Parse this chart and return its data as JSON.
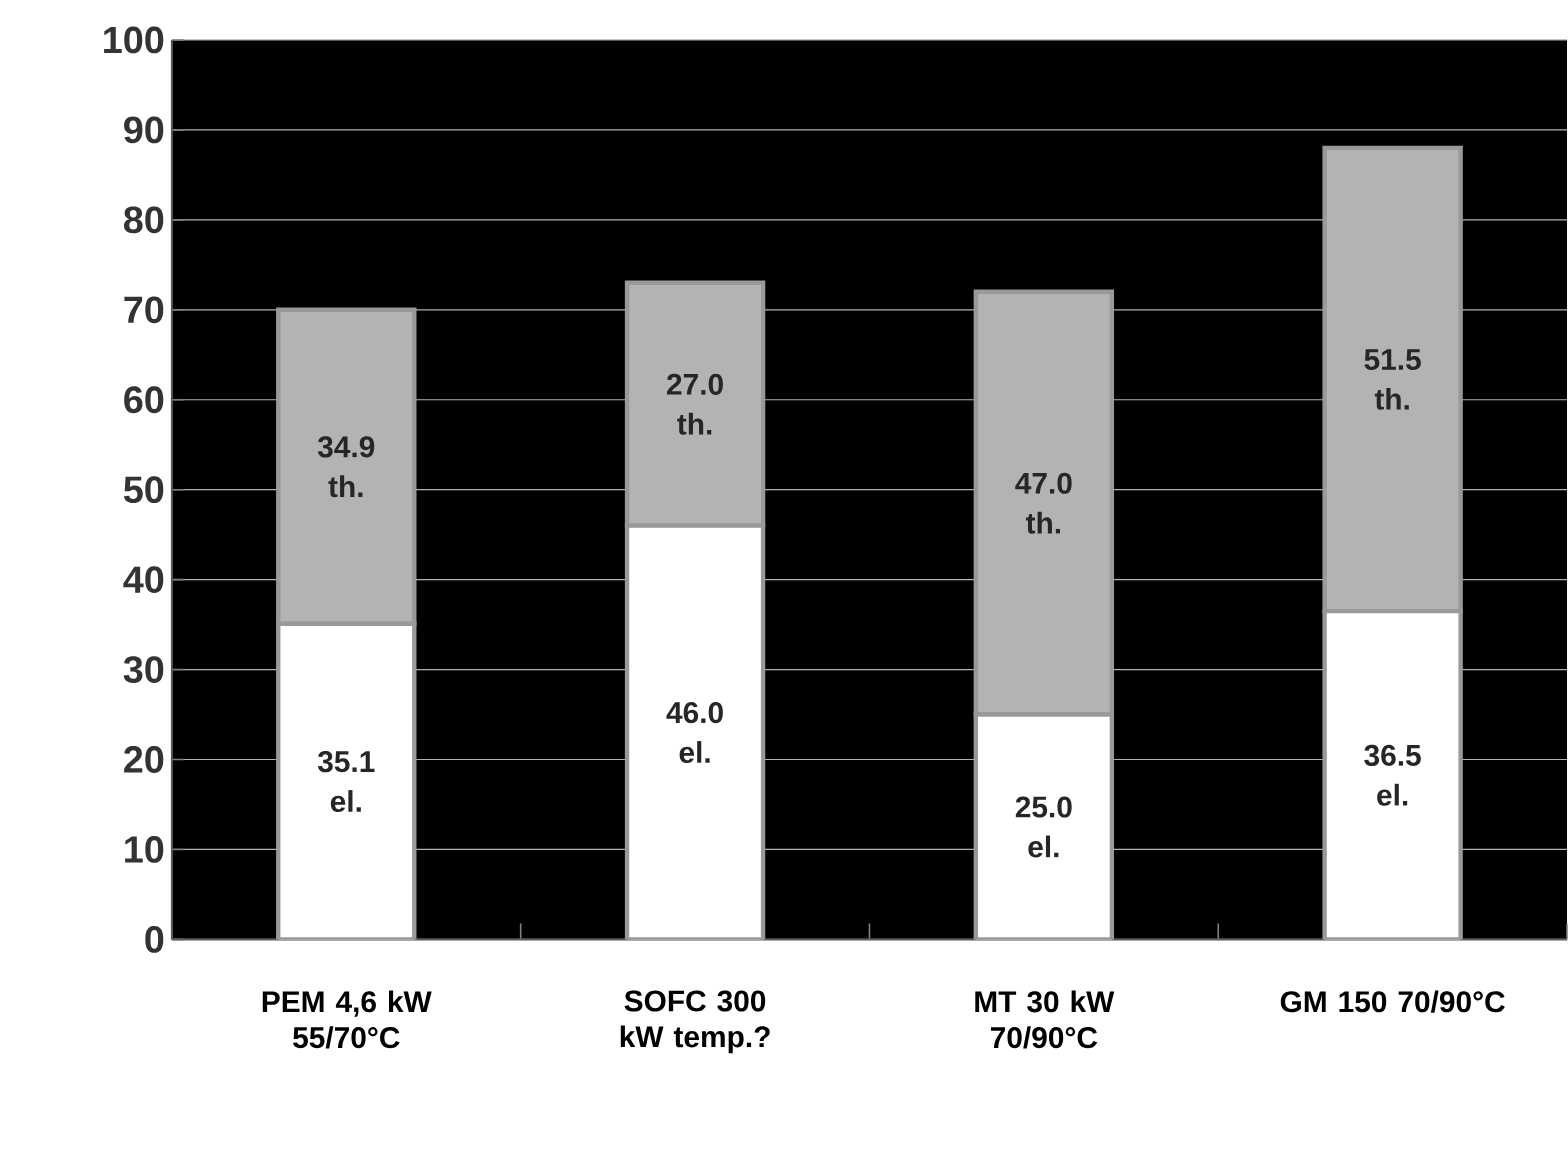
{
  "chart_data": {
    "type": "bar",
    "stacked": true,
    "categories": [
      "PEM 4,6 kW 55/70°C",
      "SOFC 300 kW temp.?",
      "MT 30 kW 70/90°C",
      "GM 150 70/90°C"
    ],
    "series": [
      {
        "color": "#ffffff",
        "values": [
          35.1,
          46.0,
          25.0,
          36.5
        ],
        "value_labels": [
          "35.1 el.",
          "46.0 el.",
          "25.0 el.",
          "36.5 el."
        ]
      },
      {
        "color": "#b3b3b3",
        "values": [
          34.9,
          27.0,
          47.0,
          51.5
        ],
        "value_labels": [
          "34.9 th.",
          "27.0 th.",
          "47.0 th.",
          "51.5 th."
        ]
      }
    ],
    "ylim": [
      0,
      100
    ],
    "yticks": [
      0,
      10,
      20,
      30,
      40,
      50,
      60,
      70,
      80,
      90,
      100
    ],
    "grid": "y"
  }
}
